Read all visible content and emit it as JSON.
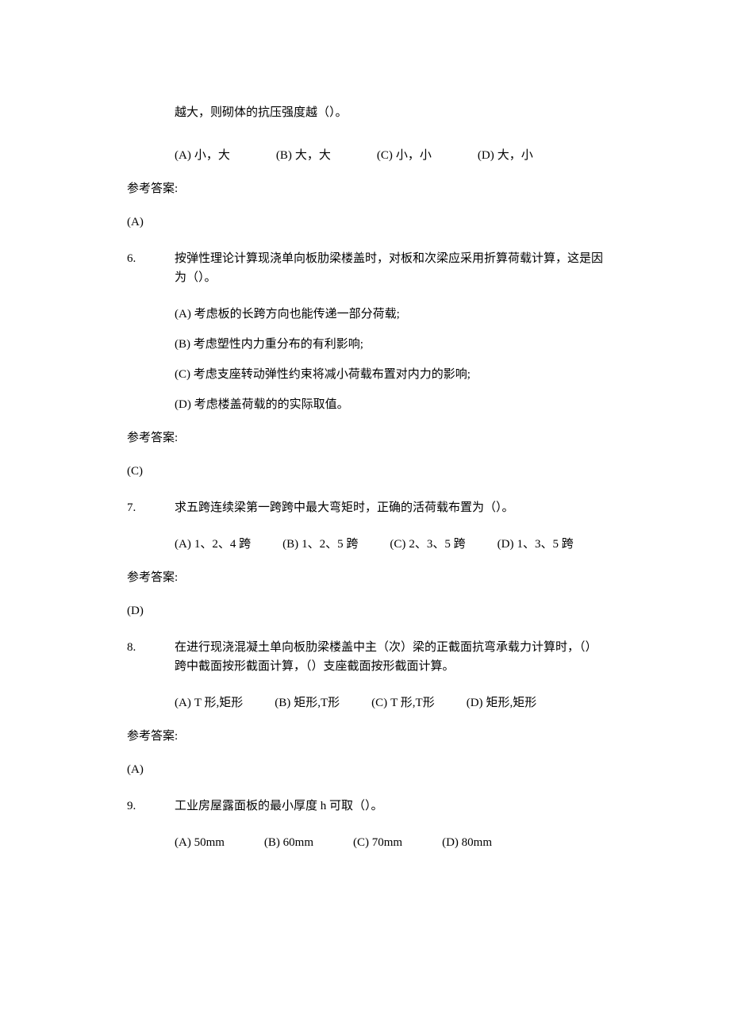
{
  "q5_fragment": {
    "text": "越大，则砌体的抗压强度越（）。",
    "options": {
      "a_label": "(A)",
      "a_text": "小，大",
      "b_label": "(B)",
      "b_text": "大，大",
      "c_label": "(C)",
      "c_text": "小，小",
      "d_label": "(D)",
      "d_text": "大，小"
    },
    "answer_label": "参考答案:",
    "answer": "(A)"
  },
  "q6": {
    "num": "6.",
    "text": "按弹性理论计算现浇单向板肋梁楼盖时，对板和次梁应采用折算荷载计算，这是因为（）。",
    "options": {
      "a": "(A) 考虑板的长跨方向也能传递一部分荷载;",
      "b": "(B) 考虑塑性内力重分布的有利影响;",
      "c": "(C) 考虑支座转动弹性约束将减小荷载布置对内力的影响;",
      "d": "(D) 考虑楼盖荷载的的实际取值。"
    },
    "answer_label": "参考答案:",
    "answer": "(C)"
  },
  "q7": {
    "num": "7.",
    "text": "求五跨连续梁第一跨跨中最大弯矩时，正确的活荷载布置为（）。",
    "options": {
      "a_label": "(A)",
      "a_text": "1、2、4 跨",
      "b_label": "(B)",
      "b_text": "1、2、5 跨",
      "c_label": "(C)",
      "c_text": "2、3、5 跨",
      "d_label": "(D)",
      "d_text": "1、3、5 跨"
    },
    "answer_label": "参考答案:",
    "answer": "(D)"
  },
  "q8": {
    "num": "8.",
    "text": "在进行现浇混凝土单向板肋梁楼盖中主（次）梁的正截面抗弯承载力计算时，（）跨中截面按形截面计算，（）支座截面按形截面计算。",
    "options": {
      "a_label": "(A)",
      "a_text": "T 形,矩形",
      "b_label": "(B)",
      "b_text": "矩形,T形",
      "c_label": "(C)",
      "c_text": "T 形,T形",
      "d_label": "(D)",
      "d_text": "矩形,矩形"
    },
    "answer_label": "参考答案:",
    "answer": "(A)"
  },
  "q9": {
    "num": "9.",
    "text": "工业房屋露面板的最小厚度 h 可取（）。",
    "options": {
      "a": "(A) 50mm",
      "b": "(B) 60mm",
      "c": "(C) 70mm",
      "d": "(D) 80mm"
    }
  }
}
